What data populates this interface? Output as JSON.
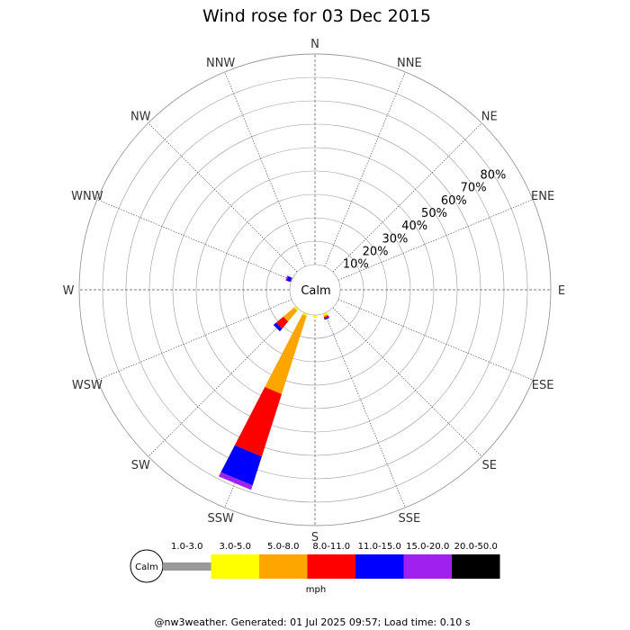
{
  "chart_data": {
    "type": "wind-rose",
    "title": "Wind rose for 03 Dec 2015",
    "directions": [
      "N",
      "NNE",
      "NE",
      "ENE",
      "E",
      "ESE",
      "SE",
      "SSE",
      "S",
      "SSW",
      "SW",
      "WSW",
      "W",
      "WNW",
      "NW",
      "NNW"
    ],
    "ring_labels": [
      "10%",
      "20%",
      "30%",
      "40%",
      "50%",
      "60%",
      "70%",
      "80%"
    ],
    "ring_max_percent": 90,
    "center_label": "Calm",
    "unit": "mph",
    "speed_bins": [
      {
        "label": "1.0-3.0",
        "color": "#999999"
      },
      {
        "label": "3.0-5.0",
        "color": "#ffff00"
      },
      {
        "label": "5.0-8.0",
        "color": "#ffa500"
      },
      {
        "label": "8.0-11.0",
        "color": "#ff0000"
      },
      {
        "label": "11.0-15.0",
        "color": "#0000ff"
      },
      {
        "label": "15.0-20.0",
        "color": "#a020f0"
      },
      {
        "label": "20.0-50.0",
        "color": "#000000"
      }
    ],
    "series": [
      {
        "direction": "SSW",
        "percents": [
          0,
          1,
          35,
          28,
          13,
          2,
          0
        ]
      },
      {
        "direction": "SW",
        "percents": [
          0,
          1,
          6,
          4,
          1.5,
          0,
          0
        ]
      },
      {
        "direction": "SSE",
        "percents": [
          0,
          1,
          0.5,
          0.7,
          0.5,
          0,
          0
        ]
      },
      {
        "direction": "S",
        "percents": [
          0,
          1,
          0,
          0,
          0,
          0,
          0
        ]
      },
      {
        "direction": "WNW",
        "percents": [
          0,
          0,
          0,
          0.5,
          1.5,
          0.5,
          0
        ]
      }
    ]
  },
  "footer": "@nw3weather. Generated: 01 Jul 2025 09:57; Load time: 0.10 s"
}
